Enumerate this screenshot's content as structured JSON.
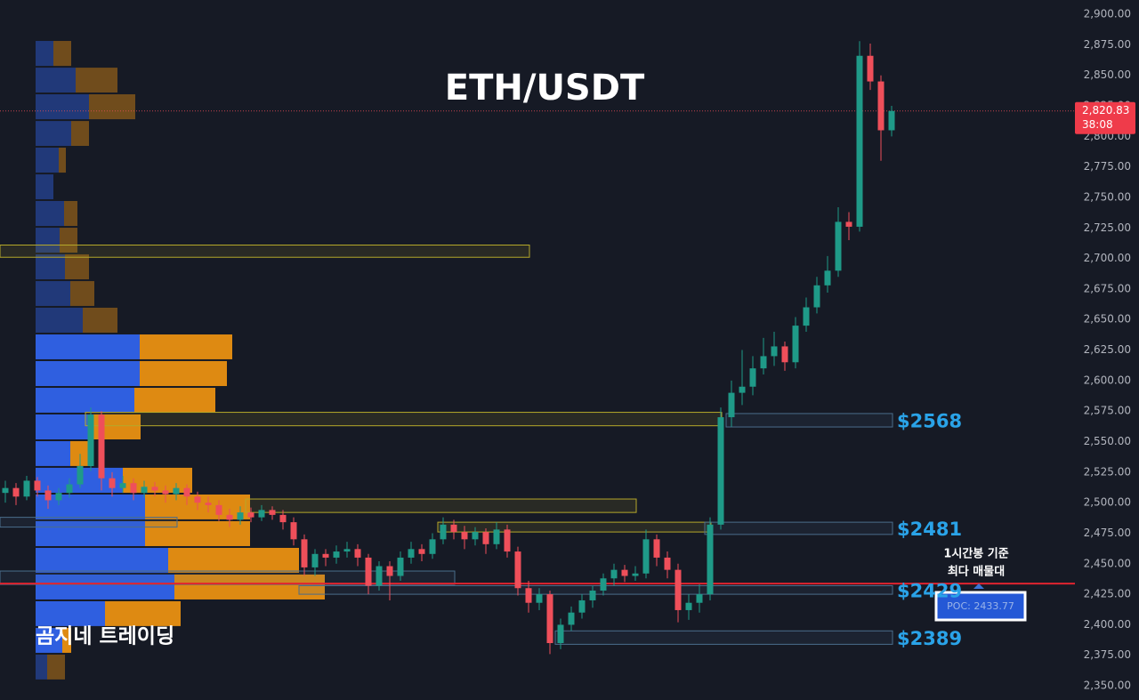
{
  "chart_data": {
    "type": "candlestick",
    "title": "ETH/USDT",
    "watermark": "곰지네 트레이딩",
    "up_color": "#1f9a88",
    "down_color": "#ef4f5a",
    "ylim": [
      2341.3,
      2911.7
    ],
    "yticks": [
      {
        "value": 2350,
        "label": "2,350.00"
      },
      {
        "value": 2375,
        "label": "2,375.00"
      },
      {
        "value": 2400,
        "label": "2,400.00"
      },
      {
        "value": 2425,
        "label": "2,425.00"
      },
      {
        "value": 2450,
        "label": "2,450.00"
      },
      {
        "value": 2475,
        "label": "2,475.00"
      },
      {
        "value": 2500,
        "label": "2,500.00"
      },
      {
        "value": 2525,
        "label": "2,525.00"
      },
      {
        "value": 2550,
        "label": "2,550.00"
      },
      {
        "value": 2575,
        "label": "2,575.00"
      },
      {
        "value": 2600,
        "label": "2,600.00"
      },
      {
        "value": 2625,
        "label": "2,625.00"
      },
      {
        "value": 2650,
        "label": "2,650.00"
      },
      {
        "value": 2675,
        "label": "2,675.00"
      },
      {
        "value": 2700,
        "label": "2,700.00"
      },
      {
        "value": 2725,
        "label": "2,725.00"
      },
      {
        "value": 2750,
        "label": "2,750.00"
      },
      {
        "value": 2775,
        "label": "2,775.00"
      },
      {
        "value": 2800,
        "label": "2,800.00"
      },
      {
        "value": 2825,
        "label": "2,825.00"
      },
      {
        "value": 2850,
        "label": "2,850.00"
      },
      {
        "value": 2875,
        "label": "2,875.00"
      },
      {
        "value": 2900,
        "label": "2,900.00"
      }
    ],
    "grid": false,
    "open": [
      2508,
      2512,
      2505,
      2518,
      2510,
      2502,
      2508,
      2515,
      2530,
      2572,
      2520,
      2512,
      2516,
      2508,
      2513,
      2510,
      2507,
      2512,
      2505,
      2500,
      2498,
      2490,
      2486,
      2492,
      2488,
      2494,
      2490,
      2484,
      2470,
      2447,
      2458,
      2455,
      2460,
      2462,
      2455,
      2432,
      2448,
      2440,
      2455,
      2462,
      2458,
      2470,
      2482,
      2476,
      2470,
      2476,
      2466,
      2478,
      2460,
      2430,
      2418,
      2425,
      2385,
      2400,
      2410,
      2420,
      2428,
      2438,
      2445,
      2440,
      2442,
      2470,
      2455,
      2445,
      2412,
      2418,
      2425,
      2482,
      2570,
      2590,
      2595,
      2610,
      2620,
      2628,
      2615,
      2645,
      2660,
      2678,
      2690,
      2730,
      2726,
      2866,
      2845,
      2805
    ],
    "high": [
      2518,
      2516,
      2522,
      2521,
      2514,
      2512,
      2520,
      2540,
      2578,
      2575,
      2525,
      2522,
      2520,
      2518,
      2517,
      2514,
      2516,
      2515,
      2509,
      2505,
      2502,
      2495,
      2497,
      2496,
      2498,
      2497,
      2494,
      2488,
      2474,
      2462,
      2462,
      2465,
      2468,
      2466,
      2458,
      2452,
      2452,
      2460,
      2468,
      2466,
      2475,
      2488,
      2486,
      2481,
      2480,
      2479,
      2484,
      2482,
      2464,
      2436,
      2430,
      2428,
      2405,
      2415,
      2425,
      2432,
      2442,
      2450,
      2449,
      2448,
      2478,
      2474,
      2460,
      2450,
      2425,
      2433,
      2488,
      2578,
      2600,
      2625,
      2620,
      2635,
      2640,
      2632,
      2652,
      2668,
      2685,
      2702,
      2742,
      2738,
      2878,
      2876,
      2850,
      2825
    ],
    "low": [
      2500,
      2498,
      2502,
      2505,
      2495,
      2498,
      2504,
      2512,
      2526,
      2510,
      2505,
      2508,
      2502,
      2504,
      2505,
      2500,
      2502,
      2498,
      2494,
      2492,
      2485,
      2480,
      2482,
      2484,
      2485,
      2486,
      2478,
      2465,
      2440,
      2440,
      2448,
      2450,
      2455,
      2448,
      2425,
      2428,
      2420,
      2436,
      2450,
      2452,
      2454,
      2466,
      2470,
      2462,
      2465,
      2458,
      2462,
      2455,
      2424,
      2410,
      2412,
      2376,
      2380,
      2395,
      2405,
      2414,
      2424,
      2432,
      2435,
      2436,
      2438,
      2448,
      2438,
      2402,
      2404,
      2410,
      2420,
      2478,
      2562,
      2580,
      2588,
      2605,
      2612,
      2608,
      2610,
      2640,
      2655,
      2672,
      2685,
      2715,
      2722,
      2838,
      2780,
      2800
    ],
    "close": [
      2512,
      2505,
      2518,
      2510,
      2502,
      2508,
      2515,
      2530,
      2572,
      2520,
      2512,
      2516,
      2508,
      2513,
      2510,
      2507,
      2512,
      2505,
      2500,
      2498,
      2490,
      2486,
      2492,
      2488,
      2494,
      2490,
      2484,
      2470,
      2447,
      2458,
      2455,
      2460,
      2462,
      2455,
      2432,
      2448,
      2440,
      2455,
      2462,
      2458,
      2470,
      2482,
      2476,
      2470,
      2476,
      2466,
      2478,
      2460,
      2430,
      2418,
      2425,
      2385,
      2400,
      2410,
      2420,
      2428,
      2438,
      2445,
      2440,
      2442,
      2470,
      2455,
      2445,
      2412,
      2418,
      2425,
      2482,
      2570,
      2590,
      2595,
      2610,
      2620,
      2628,
      2615,
      2645,
      2660,
      2678,
      2690,
      2730,
      2726,
      2866,
      2845,
      2805,
      2820.83
    ],
    "last_price": {
      "value": 2820.83,
      "label": "2,820.83"
    },
    "countdown": "38:08",
    "poc": {
      "value": 2433.77,
      "label": "POC: 2433.77"
    },
    "annotation": [
      "1시간봉 기준",
      "최다 매물대"
    ],
    "zones": [
      {
        "low": 2701,
        "high": 2711,
        "start": 0,
        "end": 49,
        "color": "#b5a82a"
      },
      {
        "low": 2563,
        "high": 2574,
        "start": 8,
        "end": 67,
        "color": "#b5a82a"
      },
      {
        "low": 2492,
        "high": 2503,
        "start": 23,
        "end": 59,
        "color": "#b5a82a"
      },
      {
        "low": 2476,
        "high": 2484,
        "start": 41,
        "end": 66,
        "color": "#b5a82a"
      },
      {
        "low": 2480,
        "high": 2488,
        "start": 0,
        "end": 16,
        "color": "#4a6d8c"
      },
      {
        "low": 2433,
        "high": 2444,
        "start": 0,
        "end": 42,
        "color": "#4a6d8c"
      },
      {
        "low": 2562,
        "high": 2573,
        "start": 68,
        "end": 83,
        "color": "#4a6d8c",
        "label": "$2568"
      },
      {
        "low": 2474,
        "high": 2484,
        "start": 66,
        "end": 83,
        "color": "#4a6d8c",
        "label": "$2481"
      },
      {
        "low": 2425,
        "high": 2432,
        "start": 28,
        "end": 83,
        "color": "#4a6d8c",
        "label": "$2429"
      },
      {
        "low": 2384,
        "high": 2395,
        "start": 52,
        "end": 83,
        "color": "#4a6d8c",
        "label": "$2389"
      }
    ],
    "profile": {
      "bins": [
        2878.9,
        2857.0,
        2835.2,
        2813.3,
        2791.5,
        2769.6,
        2747.8,
        2725.9,
        2704.1,
        2682.2,
        2660.4,
        2638.5,
        2616.7,
        2594.8,
        2573.0,
        2551.1,
        2529.3,
        2507.4,
        2485.6,
        2463.7,
        2441.9,
        2420.0,
        2398.2,
        2376.3,
        2354.5
      ],
      "value_area": [
        2376.3,
        2638.5
      ],
      "series": [
        {
          "color": "#2f5fe0",
          "values": [
            20,
            45,
            60,
            40,
            26,
            20,
            32,
            27,
            33,
            39,
            53,
            117,
            117,
            111,
            65,
            39,
            98,
            123,
            123,
            149,
            156,
            78,
            30,
            13
          ]
        },
        {
          "color": "#de8a12",
          "values": [
            20,
            47,
            52,
            20,
            8,
            0,
            15,
            20,
            27,
            27,
            39,
            104,
            98,
            91,
            53,
            26,
            78,
            118,
            118,
            147,
            169,
            85,
            10,
            20
          ]
        }
      ]
    }
  }
}
